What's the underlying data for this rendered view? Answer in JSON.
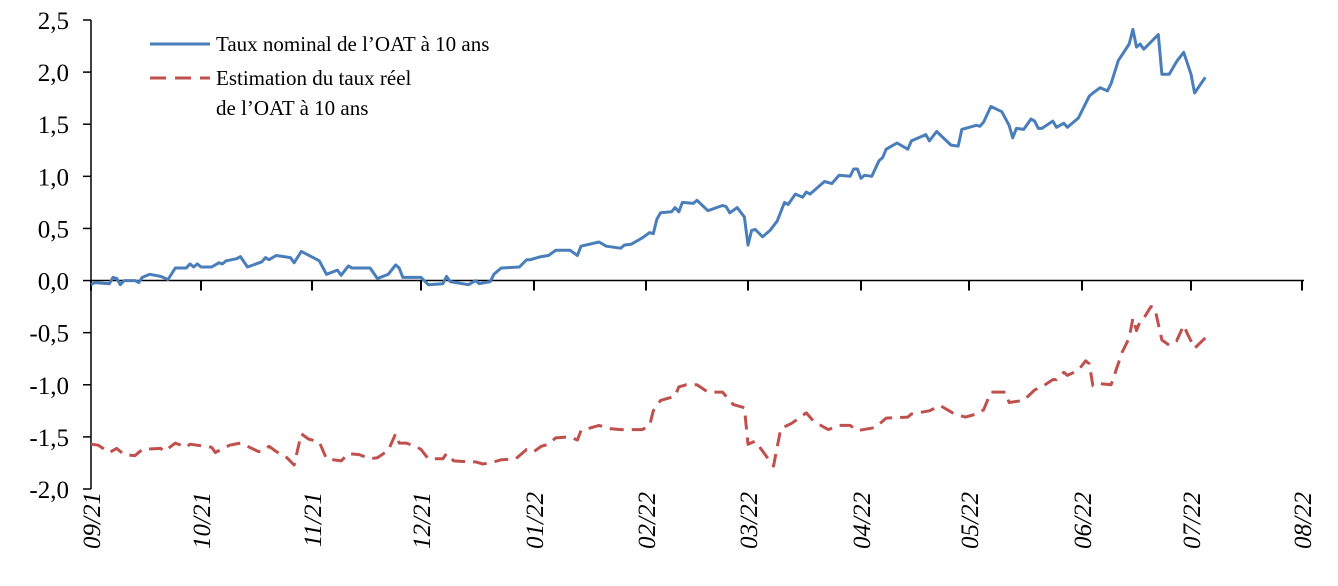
{
  "chart_data": {
    "type": "line",
    "title": "",
    "xlabel": "",
    "ylabel": "",
    "ylim": [
      -2.0,
      2.5
    ],
    "yticks": [
      "-2,0",
      "-1,5",
      "-1,0",
      "-0,5",
      "0,0",
      "0,5",
      "1,0",
      "1,5",
      "2,0",
      "2,5"
    ],
    "ytick_values": [
      -2.0,
      -1.5,
      -1.0,
      -0.5,
      0.0,
      0.5,
      1.0,
      1.5,
      2.0,
      2.5
    ],
    "xticks": [
      "09/21",
      "10/21",
      "11/21",
      "12/21",
      "01/22",
      "02/22",
      "03/22",
      "04/22",
      "05/22",
      "06/22",
      "07/22",
      "08/22"
    ],
    "xlim": [
      "2021-09-01",
      "2022-08-01"
    ],
    "grid": false,
    "legend_position": "top-left",
    "legend": {
      "nominal_label": "Taux nominal de l’OAT à 10 ans",
      "real_label_line1": "Estimation du taux réel",
      "real_label_line2": "de l’OAT à 10 ans"
    },
    "series": [
      {
        "name": "Taux nominal de l’OAT à 10 ans",
        "color": "#4a7ebb",
        "style": "solid",
        "x": [
          "2021-09-01",
          "2021-09-02",
          "2021-09-06",
          "2021-09-07",
          "2021-09-08",
          "2021-09-09",
          "2021-09-10",
          "2021-09-13",
          "2021-09-14",
          "2021-09-15",
          "2021-09-17",
          "2021-09-20",
          "2021-09-22",
          "2021-09-24",
          "2021-09-27",
          "2021-09-28",
          "2021-09-29",
          "2021-09-30",
          "2021-10-01",
          "2021-10-04",
          "2021-10-06",
          "2021-10-07",
          "2021-10-08",
          "2021-10-11",
          "2021-10-12",
          "2021-10-14",
          "2021-10-18",
          "2021-10-19",
          "2021-10-20",
          "2021-10-22",
          "2021-10-26",
          "2021-10-27",
          "2021-10-29",
          "2021-11-03",
          "2021-11-05",
          "2021-11-08",
          "2021-11-09",
          "2021-11-11",
          "2021-11-12",
          "2021-11-17",
          "2021-11-19",
          "2021-11-22",
          "2021-11-24",
          "2021-11-25",
          "2021-11-26",
          "2021-11-30",
          "2021-12-01",
          "2021-12-03",
          "2021-12-07",
          "2021-12-08",
          "2021-12-09",
          "2021-12-14",
          "2021-12-16",
          "2021-12-17",
          "2021-12-20",
          "2021-12-21",
          "2021-12-23",
          "2021-12-28",
          "2021-12-30",
          "2021-12-31",
          "2022-01-03",
          "2022-01-05",
          "2022-01-07",
          "2022-01-11",
          "2022-01-13",
          "2022-01-14",
          "2022-01-19",
          "2022-01-21",
          "2022-01-25",
          "2022-01-26",
          "2022-01-28",
          "2022-01-31",
          "2022-02-02",
          "2022-02-03",
          "2022-02-04",
          "2022-02-05",
          "2022-02-08",
          "2022-02-09",
          "2022-02-10",
          "2022-02-11",
          "2022-02-14",
          "2022-02-15",
          "2022-02-18",
          "2022-02-22",
          "2022-02-23",
          "2022-02-24",
          "2022-02-26",
          "2022-02-28",
          "2022-03-01",
          "2022-03-02",
          "2022-03-03",
          "2022-03-05",
          "2022-03-07",
          "2022-03-09",
          "2022-03-11",
          "2022-03-12",
          "2022-03-14",
          "2022-03-16",
          "2022-03-17",
          "2022-03-18",
          "2022-03-22",
          "2022-03-24",
          "2022-03-26",
          "2022-03-29",
          "2022-03-30",
          "2022-03-31",
          "2022-04-01",
          "2022-04-02",
          "2022-04-04",
          "2022-04-06",
          "2022-04-07",
          "2022-04-08",
          "2022-04-11",
          "2022-04-14",
          "2022-04-15",
          "2022-04-19",
          "2022-04-20",
          "2022-04-22",
          "2022-04-26",
          "2022-04-28",
          "2022-04-29",
          "2022-05-03",
          "2022-05-04",
          "2022-05-05",
          "2022-05-07",
          "2022-05-10",
          "2022-05-12",
          "2022-05-13",
          "2022-05-14",
          "2022-05-16",
          "2022-05-18",
          "2022-05-19",
          "2022-05-20",
          "2022-05-21",
          "2022-05-24",
          "2022-05-25",
          "2022-05-27",
          "2022-05-28",
          "2022-05-31",
          "2022-06-03",
          "2022-06-04",
          "2022-06-06",
          "2022-06-08",
          "2022-06-09",
          "2022-06-11",
          "2022-06-14",
          "2022-06-15",
          "2022-06-16",
          "2022-06-17",
          "2022-06-18",
          "2022-06-22",
          "2022-06-23",
          "2022-06-25",
          "2022-06-27",
          "2022-06-29",
          "2022-07-01",
          "2022-07-02",
          "2022-07-05"
        ],
        "values": [
          -0.04,
          -0.02,
          -0.03,
          0.03,
          0.02,
          -0.04,
          0.0,
          0.0,
          -0.02,
          0.03,
          0.06,
          0.04,
          0.01,
          0.12,
          0.12,
          0.16,
          0.13,
          0.16,
          0.13,
          0.13,
          0.17,
          0.16,
          0.19,
          0.21,
          0.23,
          0.13,
          0.18,
          0.22,
          0.2,
          0.24,
          0.22,
          0.17,
          0.28,
          0.19,
          0.06,
          0.1,
          0.05,
          0.14,
          0.12,
          0.12,
          0.02,
          0.06,
          0.15,
          0.12,
          0.03,
          0.03,
          0.03,
          -0.04,
          -0.03,
          0.04,
          -0.01,
          -0.04,
          0.0,
          -0.03,
          -0.01,
          0.06,
          0.12,
          0.13,
          0.2,
          0.2,
          0.23,
          0.24,
          0.29,
          0.29,
          0.24,
          0.33,
          0.37,
          0.33,
          0.31,
          0.34,
          0.35,
          0.41,
          0.46,
          0.45,
          0.59,
          0.65,
          0.66,
          0.7,
          0.66,
          0.75,
          0.74,
          0.77,
          0.67,
          0.72,
          0.71,
          0.65,
          0.7,
          0.61,
          0.34,
          0.48,
          0.49,
          0.42,
          0.48,
          0.57,
          0.75,
          0.73,
          0.83,
          0.8,
          0.85,
          0.83,
          0.95,
          0.93,
          1.01,
          1.0,
          1.07,
          1.07,
          0.98,
          1.01,
          1.0,
          1.15,
          1.18,
          1.26,
          1.32,
          1.26,
          1.34,
          1.4,
          1.34,
          1.43,
          1.3,
          1.29,
          1.45,
          1.49,
          1.48,
          1.52,
          1.67,
          1.62,
          1.49,
          1.37,
          1.46,
          1.45,
          1.55,
          1.53,
          1.46,
          1.46,
          1.53,
          1.47,
          1.51,
          1.47,
          1.56,
          1.77,
          1.8,
          1.85,
          1.82,
          1.89,
          2.11,
          2.27,
          2.41,
          2.24,
          2.27,
          2.22,
          2.36,
          1.98,
          1.98,
          2.1,
          2.19,
          1.98,
          1.8,
          1.95
        ]
      },
      {
        "name": "Estimation du taux réel de l’OAT à 10 ans",
        "color": "#c0504d",
        "style": "dashed",
        "x": [
          "2021-09-01",
          "2021-09-03",
          "2021-09-06",
          "2021-09-08",
          "2021-09-10",
          "2021-09-13",
          "2021-09-15",
          "2021-09-20",
          "2021-09-21",
          "2021-09-24",
          "2021-09-27",
          "2021-09-28",
          "2021-10-02",
          "2021-10-04",
          "2021-10-05",
          "2021-10-09",
          "2021-10-12",
          "2021-10-14",
          "2021-10-17",
          "2021-10-18",
          "2021-10-20",
          "2021-10-22",
          "2021-10-25",
          "2021-10-27",
          "2021-10-29",
          "2021-10-31",
          "2021-11-03",
          "2021-11-05",
          "2021-11-09",
          "2021-11-11",
          "2021-11-14",
          "2021-11-17",
          "2021-11-19",
          "2021-11-22",
          "2021-11-24",
          "2021-11-25",
          "2021-11-27",
          "2021-11-30",
          "2021-12-01",
          "2021-12-03",
          "2021-12-07",
          "2021-12-08",
          "2021-12-10",
          "2021-12-14",
          "2021-12-16",
          "2021-12-18",
          "2021-12-21",
          "2021-12-23",
          "2021-12-27",
          "2021-12-30",
          "2022-01-01",
          "2022-01-03",
          "2022-01-05",
          "2022-01-07",
          "2022-01-11",
          "2022-01-13",
          "2022-01-14",
          "2022-01-19",
          "2022-01-22",
          "2022-01-25",
          "2022-01-31",
          "2022-02-02",
          "2022-02-03",
          "2022-02-05",
          "2022-02-08",
          "2022-02-09",
          "2022-02-10",
          "2022-02-12",
          "2022-02-15",
          "2022-02-18",
          "2022-02-22",
          "2022-02-25",
          "2022-02-28",
          "2022-03-01",
          "2022-03-03",
          "2022-03-08",
          "2022-03-10",
          "2022-03-13",
          "2022-03-17",
          "2022-03-19",
          "2022-03-23",
          "2022-03-26",
          "2022-03-29",
          "2022-03-31",
          "2022-04-05",
          "2022-04-08",
          "2022-04-14",
          "2022-04-15",
          "2022-04-20",
          "2022-04-23",
          "2022-04-27",
          "2022-04-30",
          "2022-05-03",
          "2022-05-05",
          "2022-05-07",
          "2022-05-11",
          "2022-05-12",
          "2022-05-16",
          "2022-05-19",
          "2022-05-21",
          "2022-05-24",
          "2022-05-25",
          "2022-05-27",
          "2022-05-28",
          "2022-05-31",
          "2022-06-02",
          "2022-06-03",
          "2022-06-04",
          "2022-06-06",
          "2022-06-09",
          "2022-06-12",
          "2022-06-14",
          "2022-06-15",
          "2022-06-16",
          "2022-06-17",
          "2022-06-18",
          "2022-06-20",
          "2022-06-21",
          "2022-06-23",
          "2022-06-25",
          "2022-06-27",
          "2022-06-29",
          "2022-06-30",
          "2022-07-02",
          "2022-07-05"
        ],
        "values": [
          -1.57,
          -1.58,
          -1.65,
          -1.61,
          -1.67,
          -1.68,
          -1.62,
          -1.61,
          -1.64,
          -1.56,
          -1.6,
          -1.57,
          -1.59,
          -1.6,
          -1.65,
          -1.58,
          -1.56,
          -1.59,
          -1.64,
          -1.64,
          -1.59,
          -1.64,
          -1.7,
          -1.77,
          -1.47,
          -1.52,
          -1.55,
          -1.71,
          -1.73,
          -1.66,
          -1.67,
          -1.71,
          -1.7,
          -1.63,
          -1.47,
          -1.56,
          -1.56,
          -1.6,
          -1.62,
          -1.71,
          -1.71,
          -1.66,
          -1.73,
          -1.74,
          -1.74,
          -1.76,
          -1.74,
          -1.72,
          -1.71,
          -1.62,
          -1.64,
          -1.59,
          -1.57,
          -1.51,
          -1.5,
          -1.53,
          -1.44,
          -1.39,
          -1.42,
          -1.43,
          -1.43,
          -1.39,
          -1.25,
          -1.15,
          -1.12,
          -1.11,
          -1.02,
          -1.0,
          -1.0,
          -1.07,
          -1.07,
          -1.19,
          -1.22,
          -1.57,
          -1.54,
          -1.78,
          -1.42,
          -1.37,
          -1.27,
          -1.35,
          -1.43,
          -1.39,
          -1.39,
          -1.44,
          -1.41,
          -1.32,
          -1.31,
          -1.28,
          -1.25,
          -1.2,
          -1.28,
          -1.31,
          -1.28,
          -1.24,
          -1.07,
          -1.07,
          -1.17,
          -1.15,
          -1.05,
          -1.02,
          -0.95,
          -0.95,
          -0.88,
          -0.91,
          -0.86,
          -0.77,
          -0.8,
          -1.01,
          -0.99,
          -1.0,
          -0.69,
          -0.55,
          -0.36,
          -0.48,
          -0.39,
          -0.36,
          -0.25,
          -0.26,
          -0.57,
          -0.62,
          -0.58,
          -0.43,
          -0.51,
          -0.65,
          -0.55
        ]
      }
    ]
  }
}
